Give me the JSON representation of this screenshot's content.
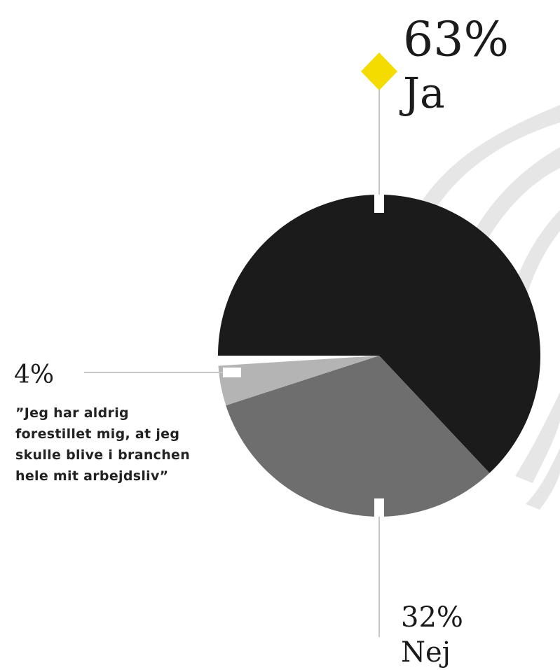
{
  "chart_data": {
    "type": "pie",
    "categories": [
      "Ja",
      "Nej",
      null
    ],
    "values": [
      63,
      32,
      4
    ],
    "value_labels": [
      "63%",
      "32%",
      "4%"
    ],
    "colors": [
      "#1b1b1b",
      "#6e6e6e",
      "#b4b4b4"
    ],
    "annotation": "”Jeg har aldrig forestillet mig, at jeg skulle blive i branchen hele mit arbejdsliv”"
  }
}
